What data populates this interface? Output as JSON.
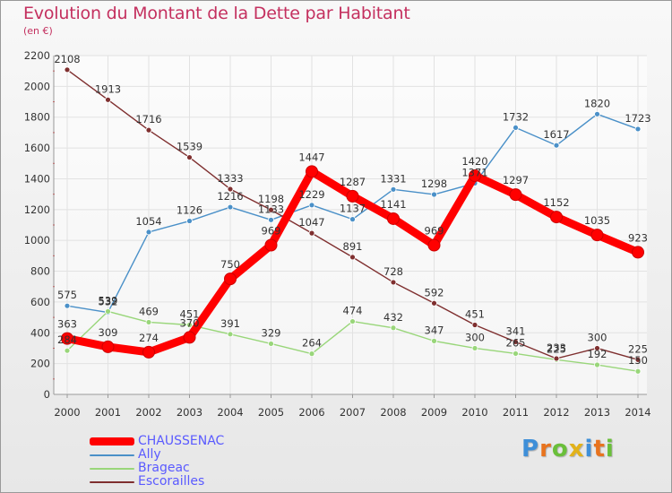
{
  "header": {
    "title": "Evolution du Montant de la Dette par Habitant",
    "subtitle": "(en €)"
  },
  "brand": {
    "text": "Proxiti",
    "letter_colors": [
      "#3f8fd8",
      "#e8731e",
      "#6abf3a",
      "#e2b21a",
      "#3f8fd8",
      "#e8731e",
      "#6abf3a"
    ]
  },
  "chart_data": {
    "type": "line",
    "x": [
      "2000",
      "2001",
      "2002",
      "2003",
      "2004",
      "2005",
      "2006",
      "2007",
      "2008",
      "2009",
      "2010",
      "2011",
      "2012",
      "2013",
      "2014"
    ],
    "ylim": [
      0,
      2200
    ],
    "yticks": [
      "0",
      "200",
      "400",
      "600",
      "800",
      "1000",
      "1200",
      "1400",
      "1600",
      "1800",
      "2000",
      "2200"
    ],
    "grid": true,
    "legend_position": "bottom-left",
    "series": [
      {
        "name": "CHAUSSENAC",
        "color": "#ff0000",
        "values": [
          363,
          309,
          274,
          370,
          750,
          969,
          1447,
          1287,
          1141,
          969,
          1420,
          1297,
          1152,
          1035,
          923
        ],
        "labels": [
          "363",
          "309",
          "274",
          "370",
          "750",
          "969",
          "1447",
          "1287",
          "1141",
          "969",
          "1420",
          "1297",
          "1152",
          "1035",
          "923"
        ]
      },
      {
        "name": "Ally",
        "color": "#4a90c8",
        "values": [
          575,
          532,
          1054,
          1126,
          1216,
          1133,
          1229,
          1137,
          1331,
          1298,
          1371,
          1732,
          1617,
          1820,
          1723
        ],
        "labels": [
          "575",
          "532",
          "1054",
          "1126",
          "1216",
          "1133",
          "1229",
          "1137",
          "1331",
          "1298",
          "1371",
          "1732",
          "1617",
          "1820",
          "1723"
        ]
      },
      {
        "name": "Brageac",
        "color": "#99d67a",
        "values": [
          284,
          539,
          469,
          451,
          391,
          329,
          264,
          474,
          432,
          347,
          300,
          265,
          225,
          192,
          150
        ],
        "labels": [
          "284",
          "539",
          "469",
          "451",
          "391",
          "329",
          "264",
          "474",
          "432",
          "347",
          "300",
          "265",
          "225",
          "192",
          "150"
        ]
      },
      {
        "name": "Escorailles",
        "color": "#7f2f2f",
        "values": [
          2108,
          1913,
          1716,
          1539,
          1333,
          1198,
          1047,
          891,
          728,
          592,
          451,
          341,
          233,
          300,
          225
        ],
        "labels": [
          "2108",
          "1913",
          "1716",
          "1539",
          "1333",
          "1198",
          "1047",
          "891",
          "728",
          "592",
          "451",
          "341",
          "233",
          "300",
          "225"
        ]
      }
    ]
  }
}
